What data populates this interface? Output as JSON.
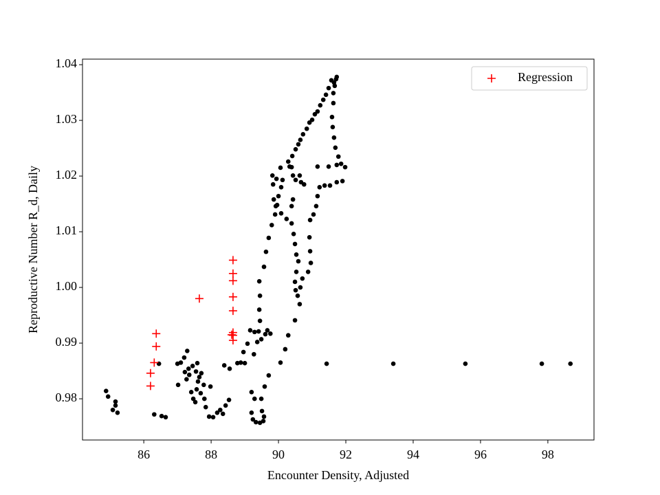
{
  "chart_data": {
    "type": "scatter",
    "xlabel": "Encounter Density, Adjusted",
    "ylabel": "Reproductive Number R_d, Daily",
    "xlim": [
      84.18,
      99.37
    ],
    "ylim": [
      0.9726,
      1.041
    ],
    "xticks": [
      86,
      88,
      90,
      92,
      94,
      96,
      98
    ],
    "yticks": [
      0.98,
      0.99,
      {
        "value": 1,
        "label": "1.00"
      },
      1.01,
      1.02,
      1.03,
      1.04
    ],
    "legend": "upper right",
    "series": [
      {
        "color": "#000000",
        "marker": "o",
        "x": [
          91.43,
          93.41,
          95.55,
          97.82,
          98.67,
          84.88,
          84.94,
          85.16,
          85.16,
          85.08,
          85.22,
          86.31,
          86.53,
          86.65,
          86.45,
          87.02,
          87.0,
          87.1,
          87.2,
          87.29,
          87.22,
          87.27,
          87.35,
          87.41,
          87.47,
          87.53,
          87.61,
          87.55,
          87.65,
          87.71,
          87.59,
          87.45,
          87.33,
          87.57,
          87.69,
          87.8,
          87.84,
          87.78,
          87.98,
          87.94,
          88.06,
          88.18,
          88.27,
          88.35,
          88.43,
          88.53,
          88.39,
          88.55,
          88.78,
          88.88,
          89.0,
          89.2,
          89.29,
          89.2,
          89.24,
          89.33,
          89.45,
          89.55,
          89.57,
          89.51,
          89.49,
          89.59,
          89.71,
          90.06,
          90.2,
          90.29,
          88.96,
          89.08,
          89.16,
          89.29,
          89.41,
          89.37,
          89.27,
          89.49,
          89.61,
          89.67,
          89.76,
          89.45,
          89.43,
          89.45,
          89.43,
          89.57,
          89.63,
          89.71,
          89.8,
          89.9,
          89.92,
          89.86,
          89.84,
          89.82,
          89.94,
          90.06,
          90.29,
          90.39,
          90.43,
          90.12,
          90.08,
          90.0,
          89.96,
          90.08,
          90.24,
          90.39,
          90.43,
          90.51,
          90.63,
          90.67,
          90.76,
          90.33,
          90.39,
          90.45,
          90.49,
          90.53,
          90.59,
          90.53,
          90.49,
          90.51,
          90.57,
          90.63,
          90.49,
          90.65,
          90.71,
          90.88,
          90.96,
          90.94,
          90.92,
          90.94,
          91.04,
          91.12,
          91.16,
          91.22,
          91.37,
          91.53,
          91.73,
          91.9,
          91.16,
          91.49,
          91.73,
          91.86,
          91.98,
          91.78,
          91.69,
          91.65,
          91.61,
          91.59,
          91.63,
          91.63,
          91.67,
          91.71,
          91.73,
          91.65,
          91.49,
          91.33,
          91.16,
          91.0,
          90.84,
          90.65,
          90.51,
          90.41,
          91.57,
          91.41,
          91.24,
          91.08,
          90.92,
          90.73,
          90.59
        ],
        "values": [
          0.9863,
          0.9863,
          0.9863,
          0.9863,
          0.9863,
          0.9814,
          0.9804,
          0.9795,
          0.9788,
          0.978,
          0.9775,
          0.9772,
          0.9769,
          0.9767,
          0.9863,
          0.9825,
          0.9863,
          0.9865,
          0.9874,
          0.9886,
          0.9848,
          0.9835,
          0.9843,
          0.9812,
          0.98,
          0.9794,
          0.9831,
          0.9849,
          0.9839,
          0.9846,
          0.9864,
          0.9859,
          0.9854,
          0.9817,
          0.981,
          0.98,
          0.9785,
          0.9825,
          0.9822,
          0.9768,
          0.9767,
          0.9775,
          0.978,
          0.9773,
          0.9788,
          0.9798,
          0.986,
          0.9854,
          0.9864,
          0.9865,
          0.9864,
          0.9812,
          0.98,
          0.9775,
          0.9763,
          0.9758,
          0.9757,
          0.976,
          0.9768,
          0.9778,
          0.98,
          0.9822,
          0.9842,
          0.9865,
          0.9889,
          0.9914,
          0.9884,
          0.9899,
          0.9923,
          0.992,
          0.9921,
          0.9902,
          0.988,
          0.9907,
          0.9916,
          0.9923,
          0.9917,
          0.994,
          0.996,
          0.9985,
          1.0011,
          1.0037,
          1.0064,
          1.0089,
          1.0112,
          1.0131,
          1.0146,
          1.0158,
          1.0185,
          1.0201,
          1.0195,
          1.0215,
          1.0226,
          1.0216,
          1.0201,
          1.0193,
          1.018,
          1.0164,
          1.0148,
          1.0133,
          1.0123,
          1.0146,
          1.0158,
          1.0193,
          1.0201,
          1.0189,
          1.0185,
          1.0217,
          1.0115,
          1.0096,
          1.0078,
          1.0059,
          1.0047,
          1.0028,
          1.001,
          0.9995,
          0.9985,
          0.997,
          0.9941,
          1.0,
          1.0016,
          1.0028,
          1.0044,
          1.0065,
          1.009,
          1.0121,
          1.0131,
          1.0146,
          1.0164,
          1.018,
          1.0183,
          1.0183,
          1.0189,
          1.0191,
          1.0217,
          1.0217,
          1.022,
          1.0222,
          1.0216,
          1.0235,
          1.0251,
          1.0269,
          1.0288,
          1.0306,
          1.0331,
          1.0349,
          1.0362,
          1.0374,
          1.0378,
          1.0368,
          1.0358,
          1.0337,
          1.0316,
          1.0301,
          1.0285,
          1.0265,
          1.0248,
          1.0236,
          1.0372,
          1.0346,
          1.0327,
          1.0311,
          1.0296,
          1.0275,
          1.0257
        ]
      },
      {
        "name": "Regression",
        "color": "#ff0000",
        "marker": "+",
        "x": [
          86.2,
          86.2,
          86.31,
          86.37,
          86.37,
          87.65,
          88.65,
          88.65,
          88.65,
          88.65,
          88.65,
          88.65,
          88.65,
          88.65,
          88.61
        ],
        "values": [
          0.9823,
          0.9846,
          0.9865,
          0.9894,
          0.9917,
          0.998,
          1.0049,
          1.0025,
          1.0012,
          0.9983,
          0.9958,
          0.9919,
          0.9914,
          0.9905,
          0.9915
        ]
      }
    ]
  }
}
